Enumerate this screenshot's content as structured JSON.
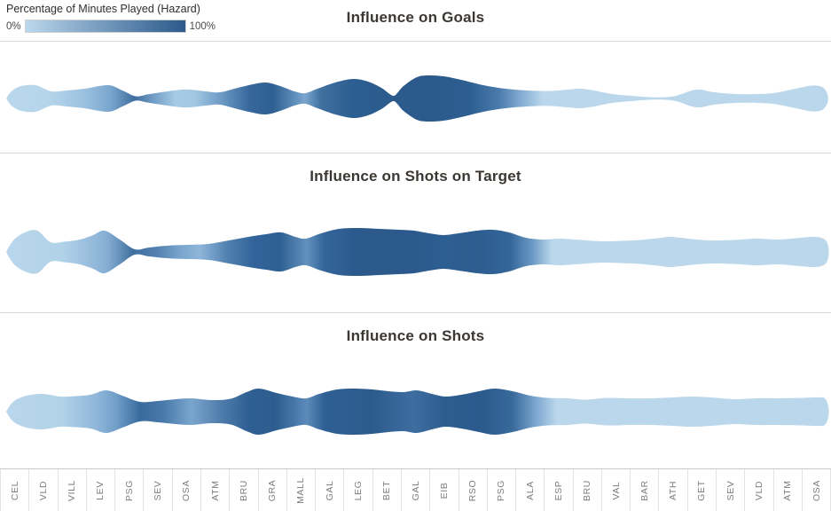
{
  "legend": {
    "title": "Percentage of Minutes Played (Hazard)",
    "min_label": "0%",
    "max_label": "100%",
    "gradient_start": "#bad7ec",
    "gradient_end": "#2b598b"
  },
  "colors": {
    "divider": "#d8d8d8",
    "axis_label": "#7d7d7d",
    "title_text": "#3b3733",
    "light_blue": "#bad7ec",
    "dark_blue": "#2b598b"
  },
  "chart_data": {
    "type": "area",
    "variant": "centered-stream-small-multiples",
    "x_axis_note": "opponent of each match, in sequence",
    "color_encoding": "Percentage of Minutes Played (Hazard): 0% light blue to 100% dark blue",
    "grid": false,
    "categories": [
      "CEL",
      "VLD",
      "VILL",
      "LEV",
      "PSG",
      "SEV",
      "OSA",
      "ATM",
      "BRU",
      "GRA",
      "MALL",
      "GAL",
      "LEG",
      "BET",
      "GAL",
      "EIB",
      "RSO",
      "PSG",
      "ALA",
      "ESP",
      "BRU",
      "VAL",
      "BAR",
      "ATH",
      "GET",
      "SEV",
      "VLD",
      "ATM",
      "OSA"
    ],
    "panels": [
      {
        "title": "Influence on Goals",
        "points": [
          [
            8,
            1.5
          ],
          [
            14,
            9
          ],
          [
            24,
            14
          ],
          [
            40,
            15
          ],
          [
            58,
            8
          ],
          [
            75,
            9
          ],
          [
            95,
            11
          ],
          [
            122,
            15
          ],
          [
            138,
            9
          ],
          [
            153,
            2.5
          ],
          [
            166,
            4.5
          ],
          [
            182,
            7
          ],
          [
            200,
            9.5
          ],
          [
            214,
            10
          ],
          [
            232,
            8
          ],
          [
            248,
            7
          ],
          [
            268,
            12
          ],
          [
            285,
            16
          ],
          [
            300,
            18
          ],
          [
            316,
            14
          ],
          [
            332,
            8
          ],
          [
            344,
            6
          ],
          [
            358,
            11
          ],
          [
            378,
            18
          ],
          [
            398,
            22
          ],
          [
            415,
            19
          ],
          [
            430,
            12
          ],
          [
            441,
            4
          ],
          [
            446,
            4
          ],
          [
            455,
            14
          ],
          [
            470,
            24
          ],
          [
            483,
            26
          ],
          [
            500,
            25
          ],
          [
            520,
            21
          ],
          [
            545,
            15
          ],
          [
            570,
            11
          ],
          [
            595,
            9
          ],
          [
            620,
            8.5
          ],
          [
            640,
            10
          ],
          [
            655,
            11
          ],
          [
            670,
            9
          ],
          [
            690,
            5
          ],
          [
            712,
            3
          ],
          [
            737,
            1.3
          ],
          [
            760,
            2.5
          ],
          [
            780,
            9
          ],
          [
            790,
            10
          ],
          [
            805,
            7
          ],
          [
            830,
            5
          ],
          [
            855,
            5
          ],
          [
            875,
            6.5
          ],
          [
            897,
            11
          ],
          [
            915,
            14.5
          ],
          [
            927,
            13
          ],
          [
            933,
            5
          ]
        ],
        "color_stops": [
          [
            0,
            "#bad7ec"
          ],
          [
            55,
            "#b5d5eb"
          ],
          [
            95,
            "#9bc1df"
          ],
          [
            125,
            "#79a6ce"
          ],
          [
            152,
            "#3f6f9f"
          ],
          [
            170,
            "#6b96c1"
          ],
          [
            198,
            "#a6cbe5"
          ],
          [
            220,
            "#a2c7e2"
          ],
          [
            248,
            "#6f9cc7"
          ],
          [
            282,
            "#36669b"
          ],
          [
            308,
            "#2f6093"
          ],
          [
            330,
            "#5b8ab8"
          ],
          [
            344,
            "#7aa6ce"
          ],
          [
            362,
            "#40709f"
          ],
          [
            395,
            "#2d5f92"
          ],
          [
            448,
            "#2c5a8c"
          ],
          [
            485,
            "#2b598b"
          ],
          [
            530,
            "#2e5f92"
          ],
          [
            562,
            "#4a7aac"
          ],
          [
            588,
            "#84add2"
          ],
          [
            612,
            "#bad7ec"
          ],
          [
            937,
            "#bad7ec"
          ]
        ]
      },
      {
        "title": "Influence on Shots on Target",
        "points": [
          [
            8,
            2
          ],
          [
            16,
            14
          ],
          [
            28,
            22
          ],
          [
            42,
            24
          ],
          [
            57,
            11
          ],
          [
            72,
            11.5
          ],
          [
            90,
            14
          ],
          [
            105,
            19
          ],
          [
            118,
            24
          ],
          [
            135,
            14
          ],
          [
            152,
            3
          ],
          [
            168,
            5
          ],
          [
            188,
            7
          ],
          [
            210,
            8
          ],
          [
            235,
            9
          ],
          [
            258,
            13
          ],
          [
            280,
            17
          ],
          [
            300,
            20
          ],
          [
            317,
            22
          ],
          [
            333,
            17
          ],
          [
            345,
            15
          ],
          [
            362,
            21
          ],
          [
            382,
            26
          ],
          [
            405,
            27
          ],
          [
            428,
            26
          ],
          [
            450,
            25
          ],
          [
            467,
            24
          ],
          [
            484,
            21
          ],
          [
            500,
            19
          ],
          [
            517,
            21
          ],
          [
            538,
            24
          ],
          [
            556,
            25
          ],
          [
            574,
            22
          ],
          [
            593,
            16
          ],
          [
            612,
            14
          ],
          [
            632,
            15
          ],
          [
            655,
            13.5
          ],
          [
            678,
            12
          ],
          [
            700,
            12.5
          ],
          [
            722,
            13.5
          ],
          [
            742,
            15.5
          ],
          [
            756,
            17
          ],
          [
            776,
            15
          ],
          [
            800,
            13
          ],
          [
            827,
            13.5
          ],
          [
            853,
            15
          ],
          [
            878,
            14
          ],
          [
            903,
            16
          ],
          [
            920,
            17
          ],
          [
            930,
            14
          ],
          [
            934,
            6
          ]
        ],
        "color_stops": [
          [
            0,
            "#bad7ec"
          ],
          [
            70,
            "#b1d2e9"
          ],
          [
            105,
            "#95bbdb"
          ],
          [
            122,
            "#84acd3"
          ],
          [
            150,
            "#40709f"
          ],
          [
            175,
            "#527fae"
          ],
          [
            205,
            "#7ba7ce"
          ],
          [
            225,
            "#8eb6d9"
          ],
          [
            255,
            "#5383b2"
          ],
          [
            285,
            "#33649a"
          ],
          [
            315,
            "#2e5f92"
          ],
          [
            333,
            "#4c7cab"
          ],
          [
            346,
            "#6290bf"
          ],
          [
            366,
            "#34659a"
          ],
          [
            400,
            "#2c5a8d"
          ],
          [
            460,
            "#2b598b"
          ],
          [
            502,
            "#2e5f92"
          ],
          [
            540,
            "#2d5c8f"
          ],
          [
            575,
            "#35669a"
          ],
          [
            600,
            "#6a99c5"
          ],
          [
            622,
            "#bad7ec"
          ],
          [
            937,
            "#bad7ec"
          ]
        ]
      },
      {
        "title": "Influence on Shots",
        "points": [
          [
            8,
            2
          ],
          [
            16,
            12
          ],
          [
            30,
            18
          ],
          [
            48,
            20
          ],
          [
            68,
            17
          ],
          [
            85,
            17.5
          ],
          [
            102,
            19
          ],
          [
            120,
            24
          ],
          [
            138,
            18
          ],
          [
            158,
            11
          ],
          [
            178,
            12
          ],
          [
            198,
            14
          ],
          [
            216,
            15
          ],
          [
            238,
            13
          ],
          [
            260,
            14.5
          ],
          [
            278,
            22
          ],
          [
            292,
            26
          ],
          [
            312,
            21
          ],
          [
            330,
            17
          ],
          [
            345,
            15
          ],
          [
            360,
            20
          ],
          [
            380,
            25
          ],
          [
            400,
            26
          ],
          [
            420,
            25
          ],
          [
            438,
            23
          ],
          [
            455,
            22
          ],
          [
            470,
            24
          ],
          [
            487,
            20
          ],
          [
            502,
            17
          ],
          [
            520,
            19
          ],
          [
            540,
            23
          ],
          [
            558,
            26
          ],
          [
            578,
            23
          ],
          [
            598,
            18
          ],
          [
            618,
            15.5
          ],
          [
            640,
            15
          ],
          [
            660,
            13.5
          ],
          [
            685,
            15.5
          ],
          [
            710,
            15
          ],
          [
            735,
            15
          ],
          [
            758,
            16
          ],
          [
            780,
            17
          ],
          [
            802,
            16
          ],
          [
            828,
            14
          ],
          [
            852,
            15
          ],
          [
            878,
            15
          ],
          [
            903,
            15.5
          ],
          [
            922,
            16
          ],
          [
            930,
            15
          ],
          [
            934,
            6
          ]
        ],
        "color_stops": [
          [
            0,
            "#bad7ec"
          ],
          [
            70,
            "#b2d3e9"
          ],
          [
            110,
            "#8eb5d8"
          ],
          [
            132,
            "#6f9dc8"
          ],
          [
            158,
            "#3a6b9d"
          ],
          [
            185,
            "#4a7aab"
          ],
          [
            216,
            "#7aa6cd"
          ],
          [
            246,
            "#527fae"
          ],
          [
            280,
            "#2f6094"
          ],
          [
            310,
            "#2d5c8f"
          ],
          [
            332,
            "#4777a9"
          ],
          [
            346,
            "#5d8cbb"
          ],
          [
            366,
            "#2f6094"
          ],
          [
            420,
            "#2c5a8d"
          ],
          [
            466,
            "#3e6ea1"
          ],
          [
            502,
            "#2d5c8f"
          ],
          [
            545,
            "#2c5a8d"
          ],
          [
            578,
            "#386a9c"
          ],
          [
            605,
            "#7ea8d0"
          ],
          [
            628,
            "#bad7ec"
          ],
          [
            937,
            "#bad7ec"
          ]
        ]
      }
    ]
  }
}
